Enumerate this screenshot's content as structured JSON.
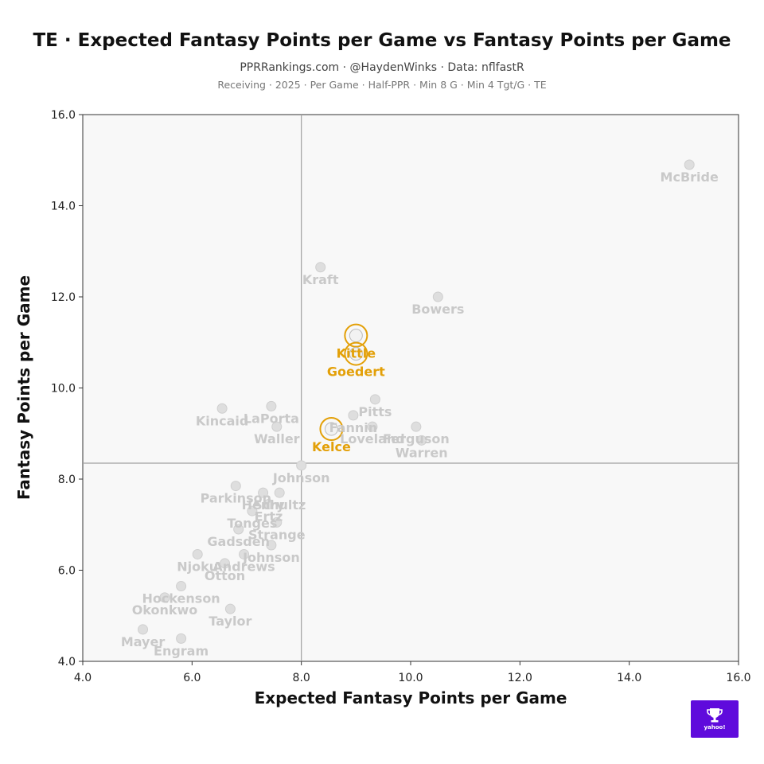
{
  "header": {
    "title": "TE · Expected Fantasy Points per Game vs Fantasy Points per Game",
    "subtitle": "PPRRankings.com · @HaydenWinks · Data: nflfastR",
    "filters": "Receiving · 2025 · Per Game · Half-PPR · Min 8 G · Min 4 Tgt/G · TE"
  },
  "logo": {
    "text": "yahoo!",
    "color": "#5f0bdc"
  },
  "chart_data": {
    "type": "scatter",
    "title": "TE · Expected Fantasy Points per Game vs Fantasy Points per Game",
    "xlabel": "Expected Fantasy Points per Game",
    "ylabel": "Fantasy Points per Game",
    "xlim": [
      4.0,
      16.0
    ],
    "ylim": [
      4.0,
      16.0
    ],
    "xticks": [
      "4.0",
      "6.0",
      "8.0",
      "10.0",
      "12.0",
      "14.0",
      "16.0"
    ],
    "yticks": [
      "4.0",
      "6.0",
      "8.0",
      "10.0",
      "12.0",
      "14.0",
      "16.0"
    ],
    "grid": false,
    "reference_lines": {
      "x": 8.0,
      "y": 8.35
    },
    "colors": {
      "highlight": "#e3a008",
      "muted": "#c9c9c9",
      "reference": "#a0a0a0"
    },
    "points": [
      {
        "name": "McBride",
        "x": 15.1,
        "y": 14.9,
        "highlight": false
      },
      {
        "name": "Kraft",
        "x": 8.35,
        "y": 12.65,
        "highlight": false
      },
      {
        "name": "Bowers",
        "x": 10.5,
        "y": 12.0,
        "highlight": false
      },
      {
        "name": "Kittle",
        "x": 9.0,
        "y": 11.15,
        "highlight": true
      },
      {
        "name": "Goedert",
        "x": 9.0,
        "y": 10.75,
        "highlight": true
      },
      {
        "name": "Pitts",
        "x": 9.35,
        "y": 9.75,
        "highlight": false
      },
      {
        "name": "Kincaid",
        "x": 6.55,
        "y": 9.55,
        "highlight": false
      },
      {
        "name": "LaPorta",
        "x": 7.45,
        "y": 9.6,
        "highlight": false
      },
      {
        "name": "Waller",
        "x": 7.55,
        "y": 9.15,
        "highlight": false
      },
      {
        "name": "Fannin",
        "x": 8.95,
        "y": 9.4,
        "highlight": false
      },
      {
        "name": "Loveland",
        "x": 9.3,
        "y": 9.15,
        "highlight": false
      },
      {
        "name": "Ferguson",
        "x": 10.1,
        "y": 9.15,
        "highlight": false
      },
      {
        "name": "Warren",
        "x": 10.2,
        "y": 8.85,
        "highlight": false
      },
      {
        "name": "Kelce",
        "x": 8.55,
        "y": 9.1,
        "highlight": true
      },
      {
        "name": "Johnson",
        "x": 8.0,
        "y": 8.3,
        "highlight": false
      },
      {
        "name": "Henry",
        "x": 7.3,
        "y": 7.7,
        "highlight": false
      },
      {
        "name": "Parkinson",
        "x": 6.8,
        "y": 7.85,
        "highlight": false
      },
      {
        "name": "Ertz",
        "x": 7.4,
        "y": 7.45,
        "highlight": false
      },
      {
        "name": "Schultz",
        "x": 7.6,
        "y": 7.7,
        "highlight": false
      },
      {
        "name": "Tonges",
        "x": 7.1,
        "y": 7.3,
        "highlight": false
      },
      {
        "name": "Strange",
        "x": 7.55,
        "y": 7.05,
        "highlight": false
      },
      {
        "name": "Gadsden",
        "x": 6.85,
        "y": 6.9,
        "highlight": false
      },
      {
        "name": "Johnson",
        "x": 7.45,
        "y": 6.55,
        "highlight": false
      },
      {
        "name": "Njoku",
        "x": 6.1,
        "y": 6.35,
        "highlight": false
      },
      {
        "name": "Andrews",
        "x": 6.95,
        "y": 6.35,
        "highlight": false
      },
      {
        "name": "Otton",
        "x": 6.6,
        "y": 6.15,
        "highlight": false
      },
      {
        "name": "Hockenson",
        "x": 5.8,
        "y": 5.65,
        "highlight": false
      },
      {
        "name": "Okonkwo",
        "x": 5.5,
        "y": 5.4,
        "highlight": false
      },
      {
        "name": "Taylor",
        "x": 6.7,
        "y": 5.15,
        "highlight": false
      },
      {
        "name": "Mayer",
        "x": 5.1,
        "y": 4.7,
        "highlight": false
      },
      {
        "name": "Engram",
        "x": 5.8,
        "y": 4.5,
        "highlight": false
      }
    ]
  }
}
